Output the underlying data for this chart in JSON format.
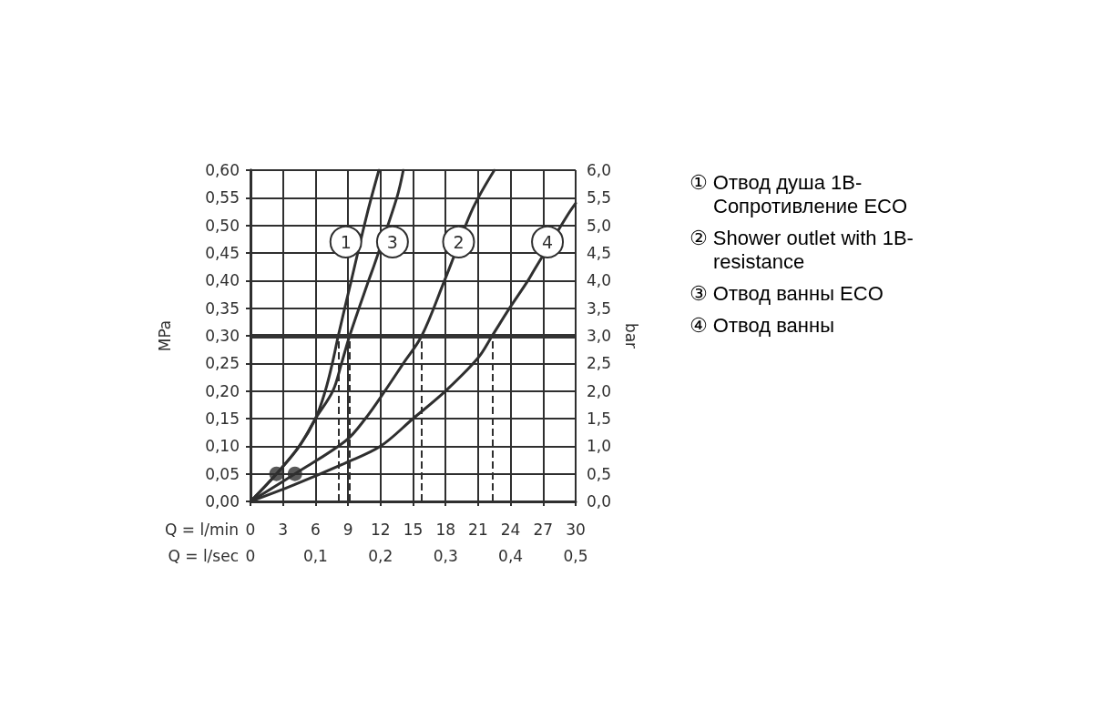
{
  "chart_data": {
    "type": "line",
    "xlabel": "Q = l/min",
    "x2label": "Q = l/sec",
    "ylabel": "MPa",
    "y2label": "bar",
    "xlim": [
      0,
      30
    ],
    "xticks": [
      0,
      3,
      6,
      9,
      12,
      15,
      18,
      21,
      24,
      27,
      30
    ],
    "x2lim": [
      0,
      0.5
    ],
    "x2ticks": [
      0,
      {
        "value": 0.1,
        "label": "0,1"
      },
      {
        "value": 0.2,
        "label": "0,2"
      },
      {
        "value": 0.3,
        "label": "0,3"
      },
      {
        "value": 0.4,
        "label": "0,4"
      },
      {
        "value": 0.5,
        "label": "0,5"
      }
    ],
    "ylim": [
      0,
      0.6
    ],
    "yticks": [
      {
        "value": 0,
        "label": "0,00"
      },
      {
        "value": 0.05,
        "label": "0,05"
      },
      {
        "value": 0.1,
        "label": "0,10"
      },
      {
        "value": 0.15,
        "label": "0,15"
      },
      {
        "value": 0.2,
        "label": "0,20"
      },
      {
        "value": 0.25,
        "label": "0,25"
      },
      {
        "value": 0.3,
        "label": "0,30"
      },
      {
        "value": 0.35,
        "label": "0,35"
      },
      {
        "value": 0.4,
        "label": "0,40"
      },
      {
        "value": 0.45,
        "label": "0,45"
      },
      {
        "value": 0.5,
        "label": "0,50"
      },
      {
        "value": 0.55,
        "label": "0,55"
      },
      {
        "value": 0.6,
        "label": "0,60"
      }
    ],
    "y2lim": [
      0,
      6
    ],
    "y2ticks": [
      {
        "value": 0,
        "label": "0,0"
      },
      {
        "value": 0.5,
        "label": "0,5"
      },
      {
        "value": 1,
        "label": "1,0"
      },
      {
        "value": 1.5,
        "label": "1,5"
      },
      {
        "value": 2,
        "label": "2,0"
      },
      {
        "value": 2.5,
        "label": "2,5"
      },
      {
        "value": 3,
        "label": "3,0"
      },
      {
        "value": 3.5,
        "label": "3,5"
      },
      {
        "value": 4,
        "label": "4,0"
      },
      {
        "value": 4.5,
        "label": "4,5"
      },
      {
        "value": 5,
        "label": "5,0"
      },
      {
        "value": 5.5,
        "label": "5,5"
      },
      {
        "value": 6,
        "label": "6,0"
      }
    ],
    "grid": true,
    "legend": "right",
    "marker": "none",
    "line_style": "solid",
    "series": [
      {
        "name": "① Отвод душа 1B-Сопротивление ECO",
        "color": "#2f2f2f",
        "x": [
          0,
          2.4,
          4.5,
          6,
          6.9,
          7.55,
          8.1,
          9.3,
          10.75,
          11.85
        ],
        "values": [
          0,
          0.05,
          0.1,
          0.15,
          0.2,
          0.25,
          0.3,
          0.4,
          0.52,
          0.6
        ]
      },
      {
        "name": "② Shower outlet with 1B-resistance",
        "color": "#2f2f2f",
        "x": [
          0,
          4.1,
          8.8,
          10.6,
          12.4,
          14.1,
          15.8,
          17.9,
          18.5,
          20.5,
          22.5
        ],
        "values": [
          0,
          0.05,
          0.11,
          0.15,
          0.2,
          0.25,
          0.3,
          0.4,
          0.43,
          0.53,
          0.6
        ]
      },
      {
        "name": "③ Отвод ванны ECO",
        "color": "#2f2f2f",
        "x": [
          0,
          2.4,
          4.5,
          6,
          7.6,
          8.4,
          9.15,
          10.9,
          11.45,
          13.5,
          14.1
        ],
        "values": [
          0,
          0.05,
          0.1,
          0.15,
          0.2,
          0.25,
          0.3,
          0.4,
          0.43,
          0.55,
          0.6
        ]
      },
      {
        "name": "④ Отвод ванны",
        "color": "#2f2f2f",
        "x": [
          0,
          4,
          8.8,
          12,
          15,
          18,
          21,
          22.3,
          23.9,
          25.6,
          26.2,
          29.3,
          30
        ],
        "values": [
          0,
          0.03,
          0.07,
          0.1,
          0.15,
          0.2,
          0.26,
          0.3,
          0.35,
          0.4,
          0.42,
          0.52,
          0.54
        ]
      },
      {
        "type": "scatter",
        "marker": "circle",
        "color": "#2f2f2f",
        "x": [
          2.4,
          4.1
        ],
        "values": [
          0.05,
          0.05
        ]
      }
    ],
    "ref_lines": [
      {
        "axis": "y",
        "value": 0.3,
        "color": "#333333"
      },
      {
        "axis": "x",
        "value": 8.1,
        "line_style": "dashed"
      },
      {
        "axis": "x",
        "value": 9.15,
        "line_style": "dashed"
      },
      {
        "axis": "x",
        "value": 15.8,
        "line_style": "dashed"
      },
      {
        "axis": "x",
        "value": 22.3,
        "line_style": "dashed"
      }
    ],
    "annotations": [
      {
        "text": "1",
        "x": 8.8,
        "y": 0.47
      },
      {
        "text": "3",
        "x": 13.1,
        "y": 0.47
      },
      {
        "text": "2",
        "x": 19.2,
        "y": 0.47
      },
      {
        "text": "4",
        "x": 27.4,
        "y": 0.47
      }
    ]
  }
}
